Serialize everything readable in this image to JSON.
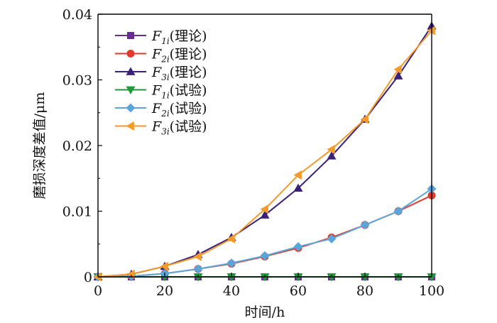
{
  "chart_data": {
    "type": "line",
    "title": "",
    "xlabel": "时间/h",
    "ylabel": "磨损深度差值/μm",
    "xlim": [
      0,
      100
    ],
    "ylim": [
      0,
      0.04
    ],
    "xticks": [
      "0",
      "20",
      "40",
      "60",
      "80",
      "100"
    ],
    "yticks": [
      "0",
      "0.01",
      "0.02",
      "0.03",
      "0.04"
    ],
    "x": [
      0,
      10,
      20,
      30,
      40,
      50,
      60,
      70,
      80,
      90,
      100
    ],
    "legend_position": "top-left",
    "series": [
      {
        "name_main": "F",
        "name_sub": "1i",
        "name_suffix": "(理论)",
        "color": "#6a2d8e",
        "line_color": "#6a2d8e",
        "marker": "square",
        "values": [
          0,
          0,
          0,
          0,
          0,
          0,
          0,
          0,
          0,
          0,
          0
        ]
      },
      {
        "name_main": "F",
        "name_sub": "2i",
        "name_suffix": "(理论)",
        "color": "#e03a2e",
        "line_color": "#e03a2e",
        "marker": "circle",
        "values": [
          0,
          0.0001,
          0.0005,
          0.0012,
          0.002,
          0.0031,
          0.0044,
          0.006,
          0.0079,
          0.01,
          0.0124
        ]
      },
      {
        "name_main": "F",
        "name_sub": "3i",
        "name_suffix": "(理论)",
        "color": "#3b1f78",
        "line_color": "#3b1f78",
        "marker": "triangle-up",
        "values": [
          0,
          0.0004,
          0.0016,
          0.0034,
          0.006,
          0.0094,
          0.0135,
          0.0184,
          0.024,
          0.0306,
          0.0382
        ]
      },
      {
        "name_main": "F",
        "name_sub": "1i",
        "name_suffix": "(试验)",
        "color": "#1f9a3a",
        "line_color": "#1f9a3a",
        "marker": "triangle-down",
        "values": [
          0,
          0,
          0,
          0,
          0,
          0,
          0,
          0,
          0,
          0,
          0
        ]
      },
      {
        "name_main": "F",
        "name_sub": "2i",
        "name_suffix": "(试验)",
        "color": "#5aa6dc",
        "line_color": "#5aa6dc",
        "marker": "diamond",
        "values": [
          0,
          0.0001,
          0.0005,
          0.0012,
          0.0021,
          0.0032,
          0.0046,
          0.0058,
          0.0079,
          0.01,
          0.0134
        ]
      },
      {
        "name_main": "F",
        "name_sub": "3i",
        "name_suffix": "(试验)",
        "color": "#f39a2a",
        "line_color": "#f39a2a",
        "marker": "triangle-left",
        "values": [
          0,
          0.0004,
          0.0016,
          0.0031,
          0.0058,
          0.0103,
          0.0155,
          0.0194,
          0.024,
          0.0316,
          0.0375
        ]
      }
    ]
  }
}
